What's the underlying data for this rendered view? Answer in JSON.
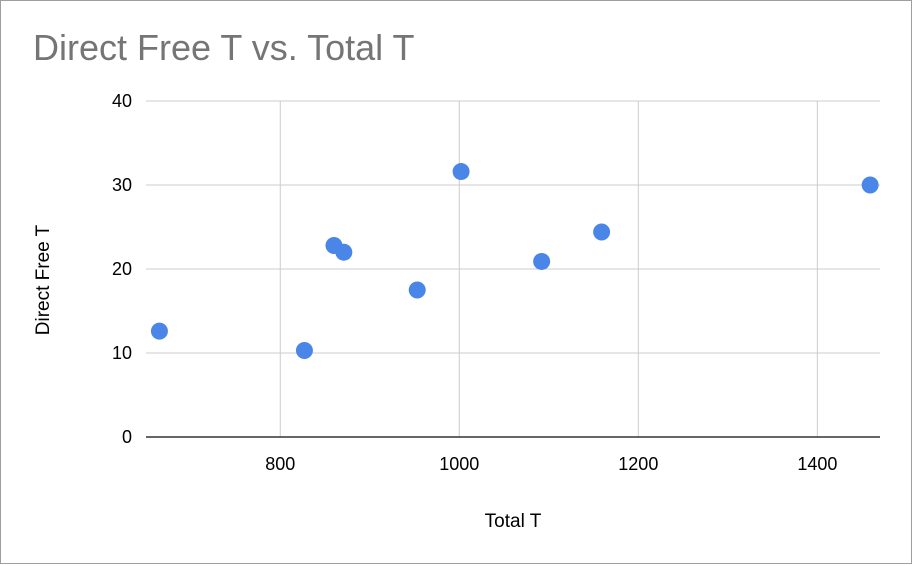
{
  "chart_data": {
    "type": "scatter",
    "title": "Direct Free T vs. Total T",
    "xlabel": "Total T",
    "ylabel": "Direct Free T",
    "xlim": [
      650,
      1470
    ],
    "ylim": [
      0,
      40
    ],
    "xticks": [
      800,
      1000,
      1200,
      1400
    ],
    "yticks": [
      0,
      10,
      20,
      30,
      40
    ],
    "grid": true,
    "legend": "none",
    "point_color": "#4a86e8",
    "series": [
      {
        "points": [
          {
            "x": 665,
            "y": 12.6
          },
          {
            "x": 827,
            "y": 10.3
          },
          {
            "x": 860,
            "y": 22.8
          },
          {
            "x": 871,
            "y": 22.0
          },
          {
            "x": 953,
            "y": 17.5
          },
          {
            "x": 1002,
            "y": 31.6
          },
          {
            "x": 1092,
            "y": 20.9
          },
          {
            "x": 1159,
            "y": 24.4
          },
          {
            "x": 1459,
            "y": 30.0
          }
        ]
      }
    ]
  }
}
